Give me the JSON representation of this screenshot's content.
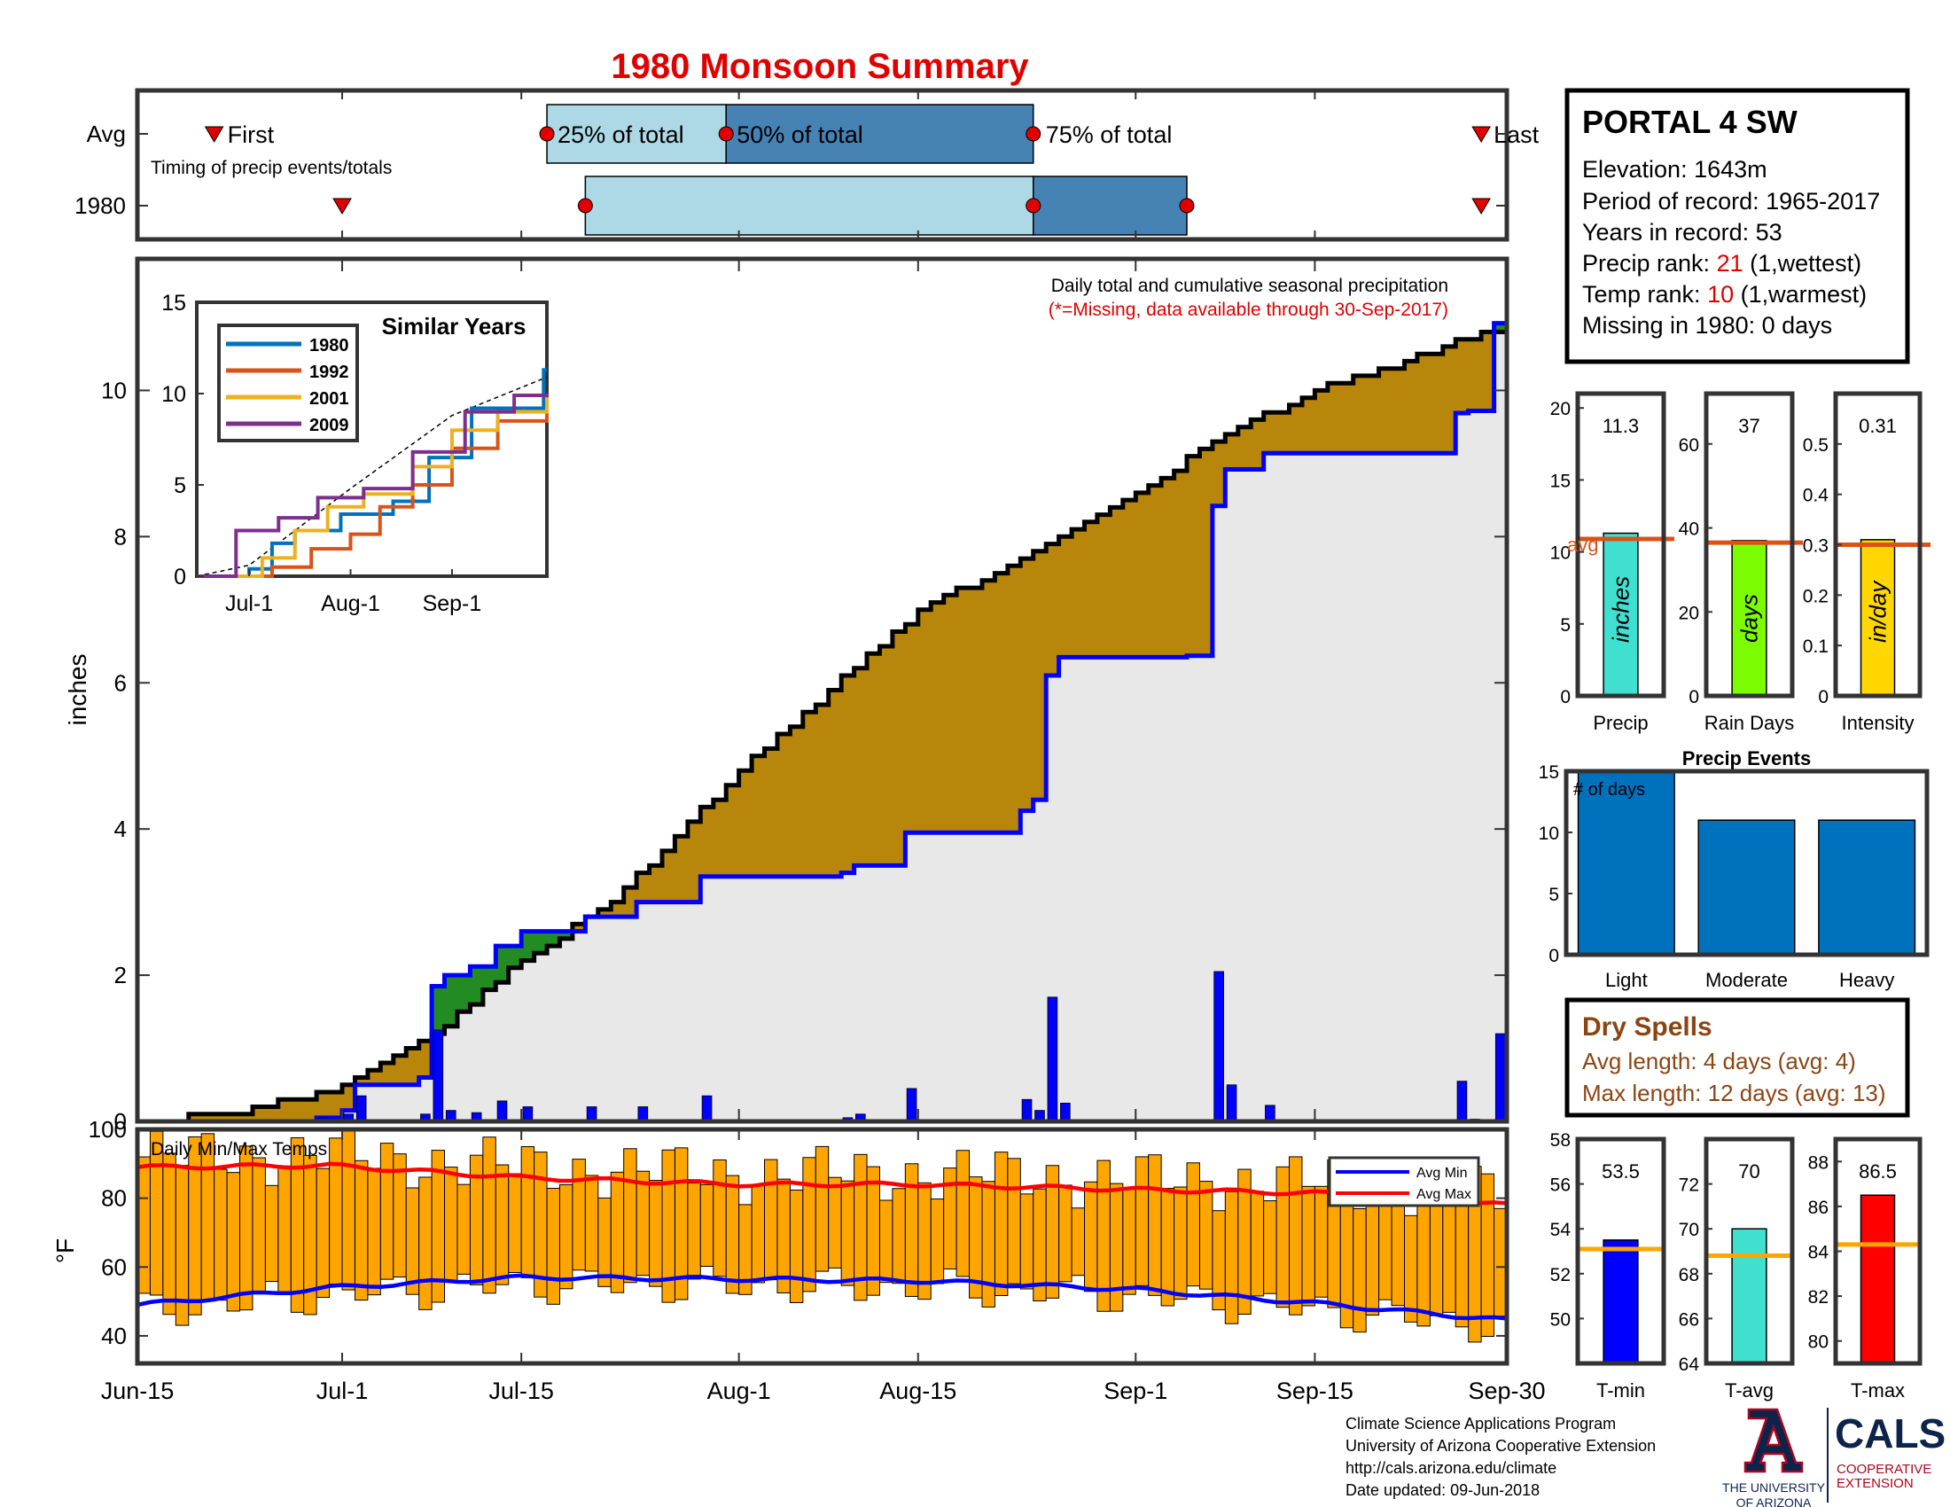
{
  "title": "1980 Monsoon Summary",
  "timing": {
    "row_labels": [
      "Avg",
      "1980"
    ],
    "note": "Timing of precip events/totals",
    "first_label": "First",
    "last_label": "Last",
    "p25_label": "25% of total",
    "p50_label": "50% of total",
    "p75_label": "75% of total",
    "avg": {
      "first": "2018-06-21",
      "p25": "2018-07-17",
      "p50": "2018-07-31",
      "p75": "2018-08-24",
      "last": "2018-09-28"
    },
    "year": {
      "first": "2018-07-01",
      "p25": "2018-07-20",
      "p50": "2018-08-24",
      "p75": "2018-09-05",
      "last": "2018-09-28"
    }
  },
  "station": {
    "name": "PORTAL 4 SW",
    "elevation": "Elevation: 1643m",
    "period": "Period of record: 1965-2017",
    "years": "Years in record: 53",
    "precip_rank_prefix": "Precip rank: ",
    "precip_rank": "21",
    "precip_rank_suffix": " (1,wettest)",
    "temp_rank_prefix": "Temp rank: ",
    "temp_rank": "10",
    "temp_rank_suffix": " (1,warmest)",
    "missing": "Missing in 1980: 0 days"
  },
  "main": {
    "annotation": "Daily total and cumulative seasonal precipitation",
    "missing_note": "(*=Missing, data available through 30-Sep-2017)",
    "ylabel": "inches",
    "ylim": [
      0,
      11.8
    ],
    "yticks": [
      0,
      2,
      4,
      6,
      8,
      10
    ],
    "xtick_labels": [
      "Jun-15",
      "Jul-1",
      "Jul-15",
      "Aug-1",
      "Aug-15",
      "Sep-1",
      "Sep-15",
      "Sep-30"
    ]
  },
  "inset": {
    "title": "Similar Years",
    "yticks": [
      0,
      5,
      10,
      15
    ],
    "xtick_labels": [
      "Jul-1",
      "Aug-1",
      "Sep-1"
    ],
    "series": [
      {
        "name": "1980",
        "color": "#0072bd"
      },
      {
        "name": "1992",
        "color": "#d95319"
      },
      {
        "name": "2001",
        "color": "#edb120"
      },
      {
        "name": "2009",
        "color": "#7e2f8e"
      }
    ]
  },
  "temps": {
    "title": "Daily Min/Max Temps",
    "ylabel": "°F",
    "yticks": [
      40,
      60,
      80,
      100
    ],
    "ylim": [
      32,
      100
    ],
    "legend": [
      "Avg Min",
      "Avg Max"
    ]
  },
  "bars3": [
    {
      "label": "Precip",
      "unit": "inches",
      "value": 11.3,
      "value_label": "11.3",
      "avg": 10.9,
      "avg_label": "avg",
      "ylim": [
        0,
        21
      ],
      "yticks": [
        0,
        5,
        10,
        15,
        20
      ],
      "color": "#40e0d0"
    },
    {
      "label": "Rain Days",
      "unit": "days",
      "value": 37,
      "value_label": "37",
      "avg": 36.5,
      "ylim": [
        0,
        72
      ],
      "yticks": [
        0,
        20,
        40,
        60
      ],
      "color": "#7cfc00"
    },
    {
      "label": "Intensity",
      "unit": "in/day",
      "value": 0.31,
      "value_label": "0.31",
      "avg": 0.3,
      "ylim": [
        0,
        0.6
      ],
      "yticks": [
        0,
        0.1,
        0.2,
        0.3,
        0.4,
        0.5
      ],
      "color": "#ffd700"
    }
  ],
  "events": {
    "title": "Precip Events",
    "ylabel_note": "# of days",
    "categories": [
      "Light",
      "Moderate",
      "Heavy"
    ],
    "values": [
      15,
      11,
      11
    ],
    "ylim": [
      0,
      15
    ],
    "yticks": [
      0,
      5,
      10,
      15
    ],
    "color": "#0072bd"
  },
  "dry": {
    "title": "Dry Spells",
    "avg_line": "Avg length: 4 days (avg: 4)",
    "max_line": "Max length: 12 days (avg: 13)"
  },
  "tbars": [
    {
      "label": "T-min",
      "value": 53.5,
      "value_label": "53.5",
      "avg": 53.1,
      "ylim": [
        48,
        58
      ],
      "yticks": [
        50,
        52,
        54,
        56,
        58
      ],
      "color": "#0000ff"
    },
    {
      "label": "T-avg",
      "value": 70,
      "value_label": "70",
      "avg": 68.8,
      "ylim": [
        64,
        74
      ],
      "yticks": [
        64,
        66,
        68,
        70,
        72
      ],
      "color": "#40e0d0"
    },
    {
      "label": "T-max",
      "value": 86.5,
      "value_label": "86.5",
      "avg": 84.3,
      "ylim": [
        79,
        89
      ],
      "yticks": [
        80,
        82,
        84,
        86,
        88
      ],
      "color": "#ff0000"
    }
  ],
  "footer": {
    "lines": [
      "Climate Science Applications Program",
      "University of Arizona Cooperative Extension",
      "http://cals.arizona.edu/climate",
      " Date updated: 09-Jun-2018"
    ],
    "ua1": "THE UNIVERSITY",
    "ua2": "OF ARIZONA",
    "cals": "CALS",
    "coop1": "COOPERATIVE",
    "coop2": "EXTENSION"
  },
  "colors": {
    "title": "#e00000",
    "rank": "#e00000",
    "dry": "#8b4513",
    "surplus": "#228b22",
    "deficit": "#b8860b",
    "orange_avg": "#d95319",
    "temp_bar": "#ffa500"
  },
  "chart_data": {
    "type": "area",
    "title": "1980 Monsoon Summary",
    "ylabel": "inches",
    "ylim": [
      0,
      11.8
    ],
    "season": {
      "start": "2018-06-15",
      "end": "2018-09-30"
    },
    "daily_precip": [
      {
        "date": "2018-06-29",
        "value": 0.05
      },
      {
        "date": "2018-07-01",
        "value": 0.1
      },
      {
        "date": "2018-07-02",
        "value": 0.35
      },
      {
        "date": "2018-07-07",
        "value": 0.1
      },
      {
        "date": "2018-07-08",
        "value": 1.25
      },
      {
        "date": "2018-07-09",
        "value": 0.15
      },
      {
        "date": "2018-07-11",
        "value": 0.12
      },
      {
        "date": "2018-07-13",
        "value": 0.28
      },
      {
        "date": "2018-07-15",
        "value": 0.2
      },
      {
        "date": "2018-07-20",
        "value": 0.2
      },
      {
        "date": "2018-07-24",
        "value": 0.2
      },
      {
        "date": "2018-07-29",
        "value": 0.35
      },
      {
        "date": "2018-08-09",
        "value": 0.05
      },
      {
        "date": "2018-08-10",
        "value": 0.1
      },
      {
        "date": "2018-08-14",
        "value": 0.45
      },
      {
        "date": "2018-08-23",
        "value": 0.3
      },
      {
        "date": "2018-08-24",
        "value": 0.15
      },
      {
        "date": "2018-08-25",
        "value": 1.7
      },
      {
        "date": "2018-08-26",
        "value": 0.25
      },
      {
        "date": "2018-09-05",
        "value": 0.02
      },
      {
        "date": "2018-09-07",
        "value": 2.05
      },
      {
        "date": "2018-09-08",
        "value": 0.5
      },
      {
        "date": "2018-09-11",
        "value": 0.22
      },
      {
        "date": "2018-09-26",
        "value": 0.55
      },
      {
        "date": "2018-09-27",
        "value": 0.03
      },
      {
        "date": "2018-09-29",
        "value": 1.2
      }
    ],
    "avg_cumulative": [
      {
        "date": "2018-06-15",
        "value": 0
      },
      {
        "date": "2018-06-22",
        "value": 0.1
      },
      {
        "date": "2018-07-01",
        "value": 0.45
      },
      {
        "date": "2018-07-08",
        "value": 1.2
      },
      {
        "date": "2018-07-15",
        "value": 2.2
      },
      {
        "date": "2018-07-22",
        "value": 3.0
      },
      {
        "date": "2018-08-01",
        "value": 4.8
      },
      {
        "date": "2018-08-08",
        "value": 5.9
      },
      {
        "date": "2018-08-15",
        "value": 7.0
      },
      {
        "date": "2018-08-22",
        "value": 7.6
      },
      {
        "date": "2018-09-01",
        "value": 8.6
      },
      {
        "date": "2018-09-08",
        "value": 9.4
      },
      {
        "date": "2018-09-15",
        "value": 10.0
      },
      {
        "date": "2018-09-22",
        "value": 10.4
      },
      {
        "date": "2018-09-30",
        "value": 10.9
      }
    ],
    "inset_similar_years": [
      {
        "name": "1980",
        "x": [
          "2018-06-15",
          "2018-07-01",
          "2018-07-08",
          "2018-07-15",
          "2018-07-29",
          "2018-08-14",
          "2018-08-25",
          "2018-09-07",
          "2018-09-29"
        ],
        "values": [
          0,
          0.4,
          1.8,
          2.5,
          3.4,
          4.1,
          6.5,
          9.2,
          11.3
        ]
      },
      {
        "name": "1992",
        "x": [
          "2018-06-15",
          "2018-07-08",
          "2018-07-20",
          "2018-08-01",
          "2018-08-10",
          "2018-08-20",
          "2018-09-01",
          "2018-09-15",
          "2018-09-30"
        ],
        "values": [
          0,
          0.5,
          1.5,
          2.3,
          3.8,
          5.0,
          7.0,
          8.5,
          9.5
        ]
      },
      {
        "name": "2001",
        "x": [
          "2018-06-15",
          "2018-07-05",
          "2018-07-15",
          "2018-07-25",
          "2018-08-05",
          "2018-08-20",
          "2018-09-01",
          "2018-09-15",
          "2018-09-30"
        ],
        "values": [
          0,
          1.0,
          2.5,
          3.8,
          4.5,
          6.0,
          8.0,
          9.0,
          9.8
        ]
      },
      {
        "name": "2009",
        "x": [
          "2018-06-15",
          "2018-06-27",
          "2018-07-10",
          "2018-07-22",
          "2018-08-05",
          "2018-08-20",
          "2018-09-05",
          "2018-09-20",
          "2018-09-30"
        ],
        "values": [
          0,
          2.5,
          3.2,
          4.3,
          4.8,
          6.8,
          9.0,
          9.9,
          10.0
        ]
      }
    ],
    "inset_avg": {
      "x": [
        "2018-06-15",
        "2018-07-01",
        "2018-08-01",
        "2018-09-01",
        "2018-09-30"
      ],
      "values": [
        0,
        0.6,
        4.8,
        8.8,
        10.9
      ]
    },
    "temps": {
      "ylim": [
        32,
        100
      ],
      "avg_max": {
        "x": [
          "2018-06-15",
          "2018-06-30",
          "2018-07-15",
          "2018-08-01",
          "2018-08-15",
          "2018-09-01",
          "2018-09-15",
          "2018-09-30"
        ],
        "values": [
          89,
          89.5,
          86,
          84,
          84,
          82.5,
          81.5,
          78
        ]
      },
      "avg_min": {
        "x": [
          "2018-06-15",
          "2018-06-30",
          "2018-07-15",
          "2018-08-01",
          "2018-08-15",
          "2018-09-01",
          "2018-09-15",
          "2018-09-30"
        ],
        "values": [
          49,
          54,
          57,
          56.5,
          56,
          53.5,
          49.5,
          44.5
        ]
      }
    }
  }
}
